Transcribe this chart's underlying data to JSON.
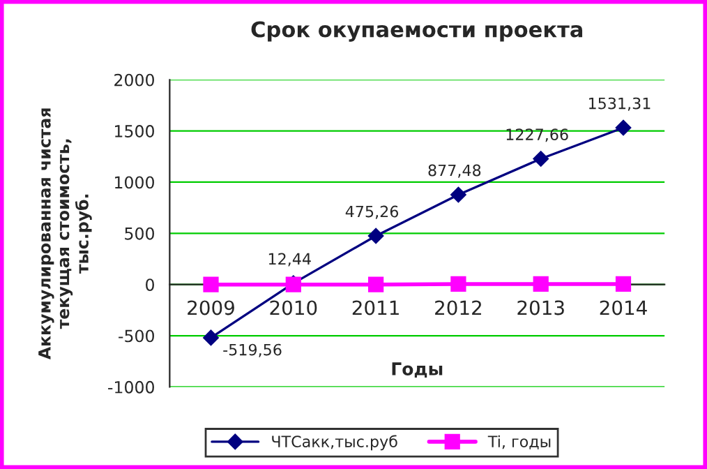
{
  "chart_data": {
    "type": "line",
    "title": "Срок окупаемости проекта",
    "xlabel": "Годы",
    "ylabel": "Аккумулированная чистая\nтекущая стоимость,\nтыс.руб.",
    "categories": [
      "2009",
      "2010",
      "2011",
      "2012",
      "2013",
      "2014"
    ],
    "series": [
      {
        "name": "ЧТСакк,тыс.руб",
        "color": "#000080",
        "marker": "diamond",
        "values": [
          -519.56,
          12.44,
          475.26,
          877.48,
          1227.66,
          1531.31
        ],
        "value_labels": [
          "-519,56",
          "12,44",
          "475,26",
          "877,48",
          "1227,66",
          "1531,31"
        ]
      },
      {
        "name": "Ti, годы",
        "color": "#ff00ff",
        "marker": "square",
        "values": [
          0,
          0,
          0,
          5,
          5,
          5
        ]
      }
    ],
    "ylim": [
      -1000,
      2000
    ],
    "yticks": [
      -1000,
      -500,
      0,
      500,
      1000,
      1500,
      2000
    ],
    "grid": "y",
    "legend": "bottom",
    "line_style": "solid"
  }
}
